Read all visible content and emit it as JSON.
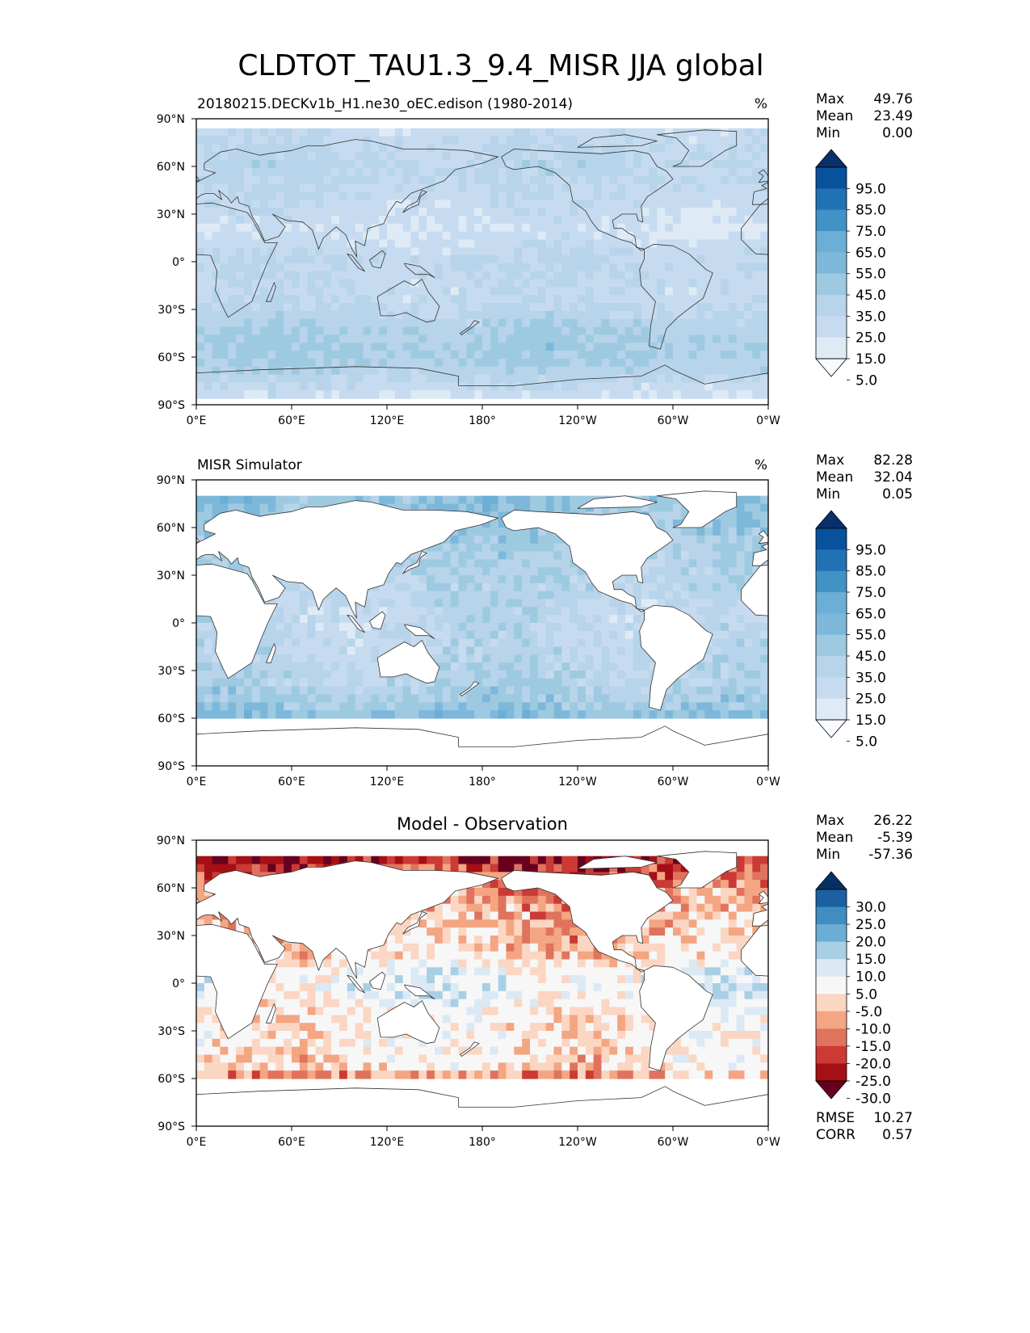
{
  "figure_title": "CLDTOT_TAU1.3_9.4_MISR JJA global",
  "colors": {
    "blues": [
      "#f7fbff",
      "#deebf7",
      "#c6dbef",
      "#b7d4ea",
      "#9ecae1",
      "#7db8da",
      "#6baed6",
      "#4292c6",
      "#2171b5",
      "#08519c",
      "#08306b"
    ],
    "diverging": [
      "#67001f",
      "#a50f15",
      "#cb3a35",
      "#e0735e",
      "#f4a582",
      "#fbd6c2",
      "#f7f7f7",
      "#dbe9f5",
      "#a9cfe5",
      "#6badd4",
      "#3f8dc1",
      "#1d5fa3",
      "#053061"
    ],
    "coastline": "#333333",
    "land": "#ffffff"
  },
  "axes": {
    "lat_labels": [
      "90°N",
      "60°N",
      "30°N",
      "0°",
      "30°S",
      "60°S",
      "90°S"
    ],
    "lon_labels": [
      "0°E",
      "60°E",
      "120°E",
      "180°",
      "120°W",
      "60°W",
      "0°W"
    ]
  },
  "panels": [
    {
      "id": "model",
      "title_left": "20180215.DECKv1b_H1.ne30_oEC.edison (1980-2014)",
      "title_right": "%",
      "stats": [
        [
          "Max",
          "49.76"
        ],
        [
          "Mean",
          "23.49"
        ],
        [
          "Min",
          "0.00"
        ]
      ],
      "colorbar_labels": [
        "95.0",
        "85.0",
        "75.0",
        "65.0",
        "55.0",
        "45.0",
        "35.0",
        "25.0",
        "15.0",
        "5.0"
      ]
    },
    {
      "id": "obs",
      "title_left": "MISR Simulator",
      "title_right": "%",
      "stats": [
        [
          "Max",
          "82.28"
        ],
        [
          "Mean",
          "32.04"
        ],
        [
          "Min",
          "0.05"
        ]
      ],
      "colorbar_labels": [
        "95.0",
        "85.0",
        "75.0",
        "65.0",
        "55.0",
        "45.0",
        "35.0",
        "25.0",
        "15.0",
        "5.0"
      ]
    },
    {
      "id": "diff",
      "title_center": "Model - Observation",
      "stats": [
        [
          "Max",
          "26.22"
        ],
        [
          "Mean",
          "-5.39"
        ],
        [
          "Min",
          "-57.36"
        ]
      ],
      "colorbar_labels": [
        "30.0",
        "25.0",
        "20.0",
        "15.0",
        "10.0",
        "5.0",
        "-5.0",
        "-10.0",
        "-15.0",
        "-20.0",
        "-25.0",
        "-30.0"
      ],
      "bottom_stats": [
        [
          "RMSE",
          "10.27"
        ],
        [
          "CORR",
          "0.57"
        ]
      ]
    }
  ],
  "chart_data": [
    {
      "type": "heatmap",
      "title": "20180215.DECKv1b_H1.ne30_oEC.edison (1980-2014)",
      "variable": "CLDTOT_TAU1.3_9.4_MISR JJA global",
      "units": "%",
      "xlim": [
        0,
        360
      ],
      "ylim": [
        -90,
        90
      ],
      "zonal_profile": {
        "lat": [
          80,
          60,
          40,
          20,
          0,
          -20,
          -40,
          -55,
          -70,
          -85
        ],
        "value": [
          22,
          28,
          22,
          15,
          25,
          22,
          32,
          38,
          30,
          15
        ]
      },
      "levels": [
        0,
        5,
        15,
        25,
        35,
        45,
        55,
        65,
        75,
        85,
        95
      ],
      "max": 49.76,
      "mean": 23.49,
      "min": 0.0
    },
    {
      "type": "heatmap",
      "title": "MISR Simulator",
      "units": "%",
      "xlim": [
        0,
        360
      ],
      "ylim": [
        -90,
        90
      ],
      "zonal_profile": {
        "lat": [
          80,
          60,
          40,
          20,
          0,
          -20,
          -40,
          -55,
          -60
        ],
        "value": [
          45,
          40,
          32,
          28,
          25,
          28,
          32,
          42,
          50
        ]
      },
      "levels": [
        0,
        5,
        15,
        25,
        35,
        45,
        55,
        65,
        75,
        85,
        95
      ],
      "max": 82.28,
      "mean": 32.04,
      "min": 0.05
    },
    {
      "type": "heatmap",
      "title": "Model - Observation",
      "units": "%",
      "xlim": [
        0,
        360
      ],
      "ylim": [
        -90,
        90
      ],
      "zonal_profile": {
        "lat": [
          80,
          60,
          40,
          20,
          0,
          -20,
          -40,
          -55,
          -60
        ],
        "value": [
          -28,
          -15,
          -10,
          -8,
          5,
          -2,
          -3,
          -5,
          -20
        ]
      },
      "levels": [
        -30,
        -25,
        -20,
        -15,
        -10,
        -5,
        5,
        10,
        15,
        20,
        25,
        30
      ],
      "max": 26.22,
      "mean": -5.39,
      "min": -57.36,
      "rmse": 10.27,
      "corr": 0.57
    }
  ]
}
